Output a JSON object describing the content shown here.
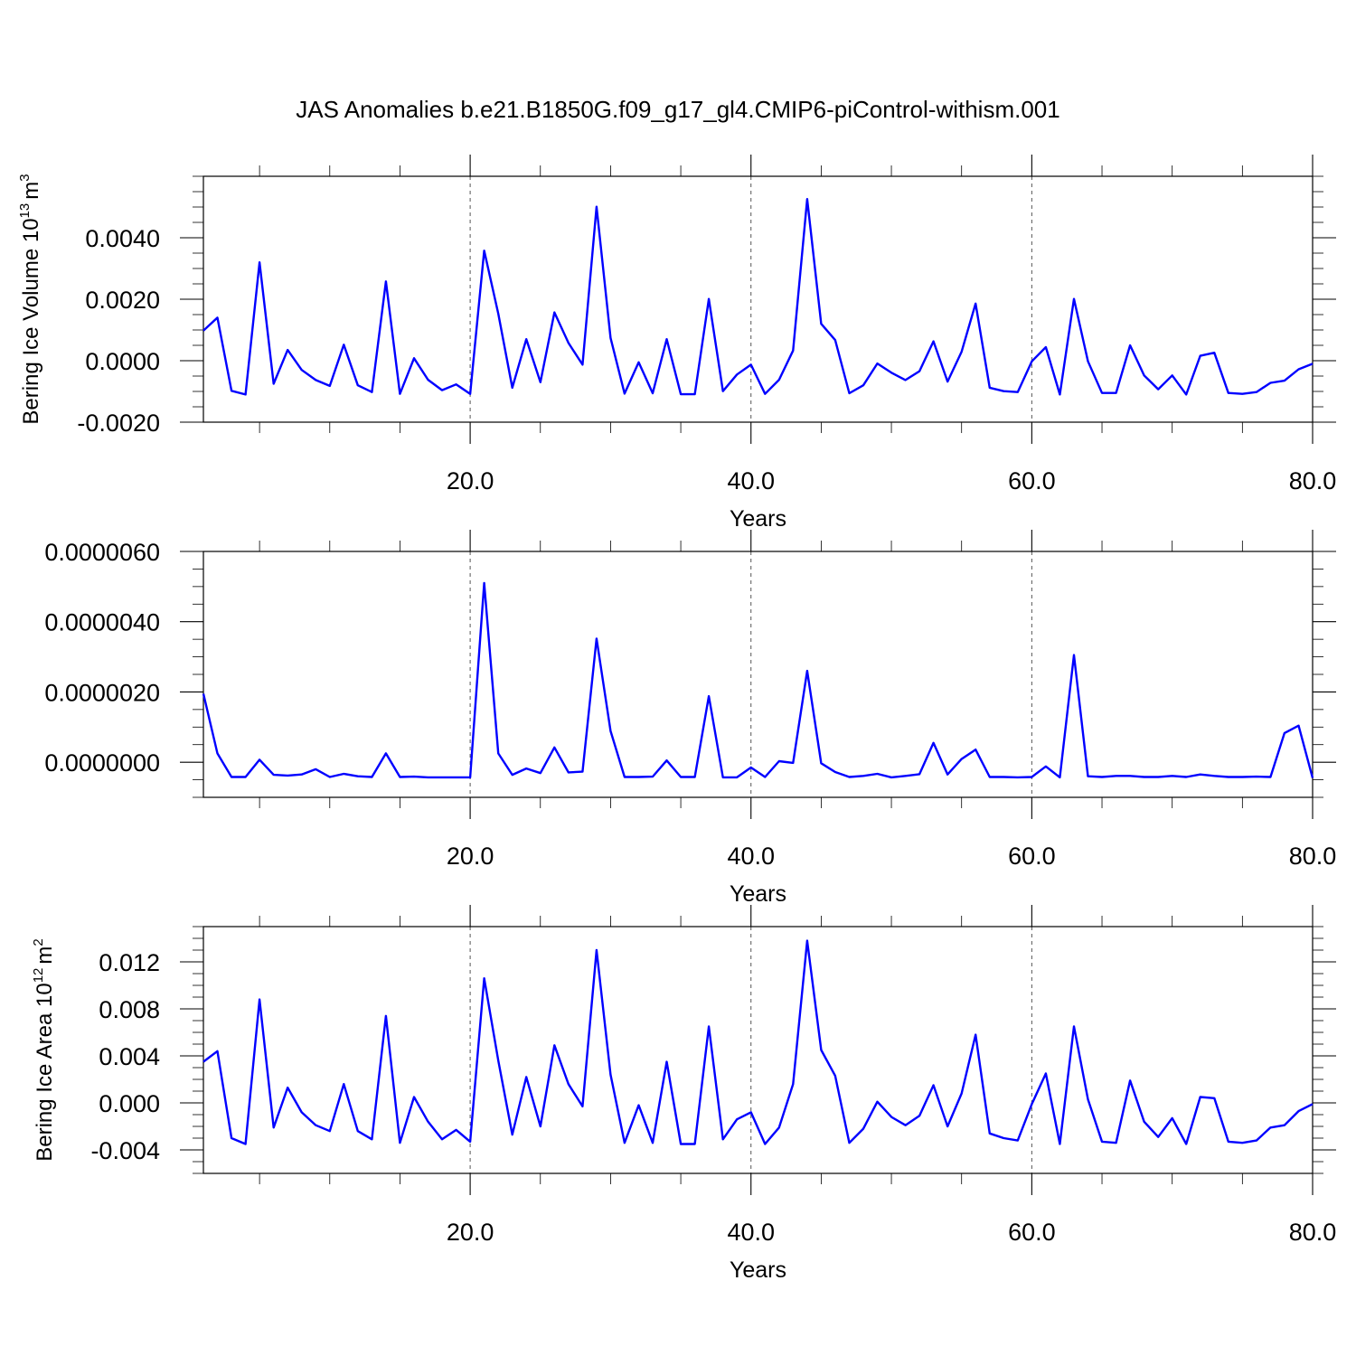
{
  "title": "JAS Anomalies b.e21.B1850G.f09_g17_gl4.CMIP6-piControl-withism.001",
  "colors": {
    "line": "#0000ff",
    "axis": "#000000",
    "grid": "#555555"
  },
  "chart_data": [
    {
      "type": "line",
      "xlabel": "Years",
      "ylabel_main": "Bering Ice Volume 10",
      "ylabel_exp": "13",
      "ylabel_unit": "m",
      "ylabel_unit_exp": "3",
      "xlim": [
        1,
        80
      ],
      "ylim": [
        -0.002,
        0.006
      ],
      "xticks": [
        20,
        40,
        60,
        80
      ],
      "xtick_labels": [
        "20.0",
        "40.0",
        "60.0",
        "80.0"
      ],
      "yticks": [
        -0.002,
        0.0,
        0.002,
        0.004
      ],
      "ytick_labels": [
        "-0.0020",
        "0.0000",
        "0.0020",
        "0.0040"
      ],
      "x": [
        1,
        2,
        3,
        4,
        5,
        6,
        7,
        8,
        9,
        10,
        11,
        12,
        13,
        14,
        15,
        16,
        17,
        18,
        19,
        20,
        21,
        22,
        23,
        24,
        25,
        26,
        27,
        28,
        29,
        30,
        31,
        32,
        33,
        34,
        35,
        36,
        37,
        38,
        39,
        40,
        41,
        42,
        43,
        44,
        45,
        46,
        47,
        48,
        49,
        50,
        51,
        52,
        53,
        54,
        55,
        56,
        57,
        58,
        59,
        60,
        61,
        62,
        63,
        64,
        65,
        66,
        67,
        68,
        69,
        70,
        71,
        72,
        73,
        74,
        75,
        76,
        77,
        78,
        79,
        80
      ],
      "y": [
        0.00098,
        0.0014,
        -0.00098,
        -0.0011,
        0.0032,
        -0.00075,
        0.00035,
        -0.0003,
        -0.00063,
        -0.00082,
        0.00052,
        -0.0008,
        -0.00102,
        0.00258,
        -0.00108,
        8e-05,
        -0.00062,
        -0.00096,
        -0.00077,
        -0.00108,
        0.00358,
        0.00153,
        -0.00088,
        0.0007,
        -0.0007,
        0.00157,
        0.00058,
        -0.00013,
        0.00501,
        0.00074,
        -0.00107,
        -5e-05,
        -0.00106,
        0.0007,
        -0.00109,
        -0.00109,
        0.00201,
        -0.00099,
        -0.00045,
        -0.00013,
        -0.00108,
        -0.00062,
        0.00033,
        0.00526,
        0.0012,
        0.00067,
        -0.00106,
        -0.0008,
        -9e-05,
        -0.00039,
        -0.00063,
        -0.00034,
        0.00063,
        -0.00068,
        0.00029,
        0.00186,
        -0.00088,
        -0.00099,
        -0.00102,
        -2e-05,
        0.00044,
        -0.0011,
        0.00201,
        -2e-05,
        -0.00105,
        -0.00105,
        0.0005,
        -0.00048,
        -0.00093,
        -0.00048,
        -0.0011,
        0.00016,
        0.00026,
        -0.00105,
        -0.00108,
        -0.00102,
        -0.00072,
        -0.00065,
        -0.00028,
        -0.0001
      ]
    },
    {
      "type": "line",
      "xlabel": "Years",
      "xlim": [
        1,
        80
      ],
      "ylim": [
        -1e-06,
        6e-06
      ],
      "xticks": [
        20,
        40,
        60,
        80
      ],
      "xtick_labels": [
        "20.0",
        "40.0",
        "60.0",
        "80.0"
      ],
      "yticks": [
        0.0,
        2e-06,
        4e-06,
        6e-06
      ],
      "ytick_labels": [
        "0.0000000",
        "0.0000020",
        "0.0000040",
        "0.0000060"
      ],
      "x": [
        1,
        2,
        3,
        4,
        5,
        6,
        7,
        8,
        9,
        10,
        11,
        12,
        13,
        14,
        15,
        16,
        17,
        18,
        19,
        20,
        21,
        22,
        23,
        24,
        25,
        26,
        27,
        28,
        29,
        30,
        31,
        32,
        33,
        34,
        35,
        36,
        37,
        38,
        39,
        40,
        41,
        42,
        43,
        44,
        45,
        46,
        47,
        48,
        49,
        50,
        51,
        52,
        53,
        54,
        55,
        56,
        57,
        58,
        59,
        60,
        61,
        62,
        63,
        64,
        65,
        66,
        67,
        68,
        69,
        70,
        71,
        72,
        73,
        74,
        75,
        76,
        77,
        78,
        79,
        80
      ],
      "y": [
        1.95e-06,
        2.5e-07,
        -4.2e-07,
        -4.2e-07,
        7e-08,
        -3.6e-07,
        -3.8e-07,
        -3.5e-07,
        -2e-07,
        -4.2e-07,
        -3.3e-07,
        -4e-07,
        -4.2e-07,
        2.5e-07,
        -4.2e-07,
        -4.1e-07,
        -4.3e-07,
        -4.3e-07,
        -4.3e-07,
        -4.3e-07,
        5.1e-06,
        2.5e-07,
        -3.6e-07,
        -1.8e-07,
        -3.1e-07,
        4.2e-07,
        -2.9e-07,
        -2.7e-07,
        3.52e-06,
        8.9e-07,
        -4.2e-07,
        -4.2e-07,
        -4.1e-07,
        5e-08,
        -4.2e-07,
        -4.2e-07,
        1.88e-06,
        -4.3e-07,
        -4.3e-07,
        -1.5e-07,
        -4.2e-07,
        3e-08,
        -2e-08,
        2.6e-06,
        -3e-08,
        -2.8e-07,
        -4.2e-07,
        -3.9e-07,
        -3.3e-07,
        -4.3e-07,
        -3.9e-07,
        -3.4e-07,
        5.5e-07,
        -3.5e-07,
        9e-08,
        3.6e-07,
        -4.2e-07,
        -4.2e-07,
        -4.3e-07,
        -4.2e-07,
        -1.2e-07,
        -4.3e-07,
        3.05e-06,
        -4e-07,
        -4.2e-07,
        -3.9e-07,
        -3.9e-07,
        -4.2e-07,
        -4.2e-07,
        -3.9e-07,
        -4.2e-07,
        -3.5e-07,
        -3.9e-07,
        -4.2e-07,
        -4.2e-07,
        -4.1e-07,
        -4.2e-07,
        8.3e-07,
        1.04e-06,
        -4.5e-07
      ]
    },
    {
      "type": "line",
      "xlabel": "Years",
      "ylabel_main": "Bering Ice Area 10",
      "ylabel_exp": "12",
      "ylabel_unit": "m",
      "ylabel_unit_exp": "2",
      "xlim": [
        1,
        80
      ],
      "ylim": [
        -0.006,
        0.015
      ],
      "xticks": [
        20,
        40,
        60,
        80
      ],
      "xtick_labels": [
        "20.0",
        "40.0",
        "60.0",
        "80.0"
      ],
      "yticks": [
        -0.004,
        0.0,
        0.004,
        0.008,
        0.012
      ],
      "ytick_labels": [
        "-0.004",
        "0.000",
        "0.004",
        "0.008",
        "0.012"
      ],
      "x": [
        1,
        2,
        3,
        4,
        5,
        6,
        7,
        8,
        9,
        10,
        11,
        12,
        13,
        14,
        15,
        16,
        17,
        18,
        19,
        20,
        21,
        22,
        23,
        24,
        25,
        26,
        27,
        28,
        29,
        30,
        31,
        32,
        33,
        34,
        35,
        36,
        37,
        38,
        39,
        40,
        41,
        42,
        43,
        44,
        45,
        46,
        47,
        48,
        49,
        50,
        51,
        52,
        53,
        54,
        55,
        56,
        57,
        58,
        59,
        60,
        61,
        62,
        63,
        64,
        65,
        66,
        67,
        68,
        69,
        70,
        71,
        72,
        73,
        74,
        75,
        76,
        77,
        78,
        79,
        80
      ],
      "y": [
        0.0035,
        0.0044,
        -0.003,
        -0.0035,
        0.0088,
        -0.0021,
        0.0013,
        -0.0008,
        -0.0019,
        -0.0024,
        0.0016,
        -0.0024,
        -0.0031,
        0.0074,
        -0.0034,
        0.0005,
        -0.0016,
        -0.0031,
        -0.0023,
        -0.0033,
        0.0106,
        0.0036,
        -0.0027,
        0.0022,
        -0.002,
        0.0049,
        0.0016,
        -0.0003,
        0.013,
        0.0024,
        -0.0034,
        -0.0002,
        -0.0034,
        0.0035,
        -0.0035,
        -0.0035,
        0.0065,
        -0.0031,
        -0.0014,
        -0.0008,
        -0.0035,
        -0.0021,
        0.0016,
        0.0138,
        0.0045,
        0.0023,
        -0.0034,
        -0.0022,
        0.0001,
        -0.0012,
        -0.0019,
        -0.0011,
        0.0015,
        -0.002,
        0.0008,
        0.0058,
        -0.0026,
        -0.003,
        -0.0032,
        -0.0001,
        0.0025,
        -0.0035,
        0.0065,
        0.0003,
        -0.0033,
        -0.0034,
        0.0019,
        -0.0016,
        -0.0029,
        -0.0013,
        -0.0035,
        0.0005,
        0.0004,
        -0.0033,
        -0.0034,
        -0.0032,
        -0.0021,
        -0.0019,
        -0.0007,
        -0.0001
      ]
    }
  ]
}
